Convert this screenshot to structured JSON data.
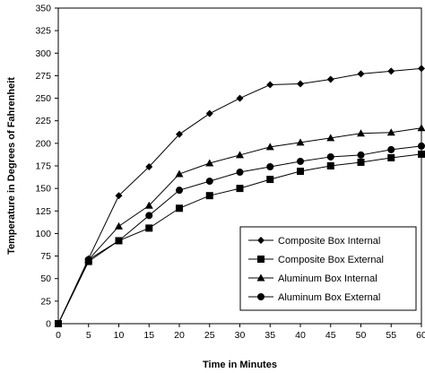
{
  "chart_data": {
    "type": "line",
    "title": "",
    "xlabel": "Time in Minutes",
    "ylabel": "Temperature in Degrees of Fahrenheit",
    "x": [
      0,
      5,
      10,
      15,
      20,
      25,
      30,
      35,
      40,
      45,
      50,
      55,
      60
    ],
    "xlim": [
      0,
      60
    ],
    "ylim": [
      0,
      350
    ],
    "x_ticks": [
      0,
      5,
      10,
      15,
      20,
      25,
      30,
      35,
      40,
      45,
      50,
      55,
      60
    ],
    "y_ticks": [
      0,
      25,
      50,
      75,
      100,
      125,
      150,
      175,
      200,
      225,
      250,
      275,
      300,
      325,
      350
    ],
    "grid": false,
    "legend_position": "bottom-right",
    "series": [
      {
        "name": "Composite Box Internal",
        "marker": "diamond",
        "values": [
          0,
          72,
          142,
          174,
          210,
          233,
          250,
          265,
          266,
          271,
          277,
          280,
          283
        ]
      },
      {
        "name": "Composite Box External",
        "marker": "square",
        "values": [
          0,
          69,
          92,
          106,
          128,
          142,
          150,
          160,
          169,
          175,
          179,
          184,
          188
        ]
      },
      {
        "name": "Aluminum Box Internal",
        "marker": "triangle",
        "values": [
          0,
          71,
          108,
          131,
          166,
          178,
          187,
          196,
          201,
          206,
          211,
          212,
          217
        ]
      },
      {
        "name": "Aluminum Box External",
        "marker": "circle",
        "values": [
          0,
          71,
          92,
          120,
          148,
          158,
          168,
          174,
          180,
          185,
          187,
          193,
          197
        ]
      }
    ]
  }
}
